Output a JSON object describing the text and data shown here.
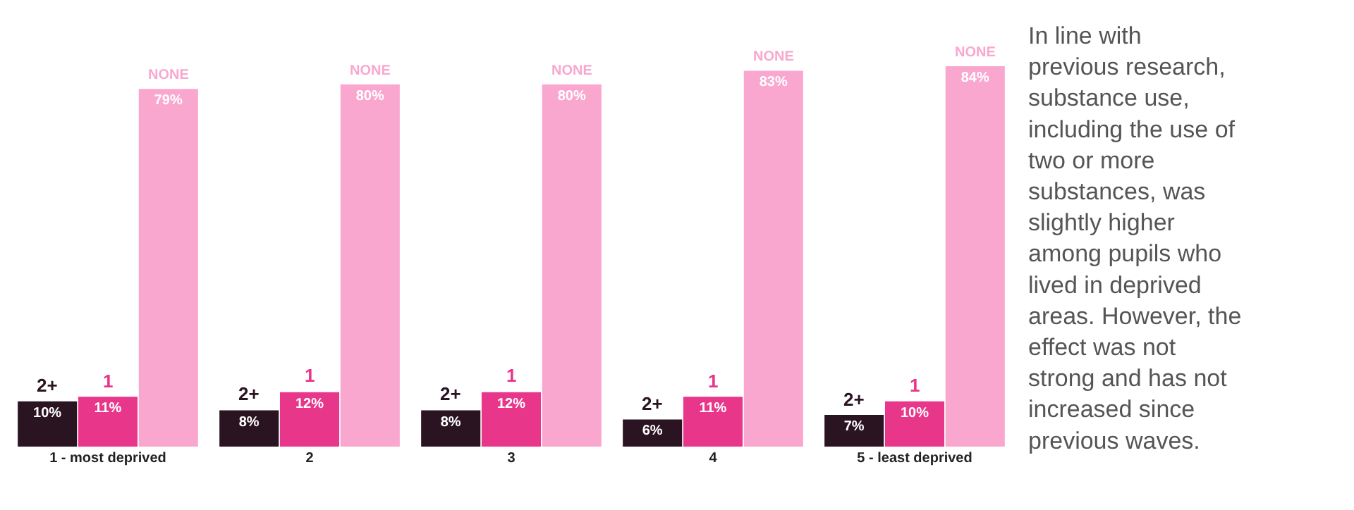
{
  "chart_data": {
    "type": "bar",
    "categories": [
      "1 - most deprived",
      "2",
      "3",
      "4",
      "5 - least deprived"
    ],
    "series": [
      {
        "name": "2+",
        "color": "#2b1421",
        "values": [
          10,
          8,
          8,
          6,
          7
        ],
        "value_labels": [
          "10%",
          "8%",
          "8%",
          "6%",
          "7%"
        ]
      },
      {
        "name": "1",
        "color": "#e8378b",
        "values": [
          11,
          12,
          12,
          11,
          10
        ],
        "value_labels": [
          "11%",
          "12%",
          "12%",
          "11%",
          "10%"
        ]
      },
      {
        "name": "NONE",
        "color": "#f9a7cf",
        "values": [
          79,
          80,
          80,
          83,
          84
        ],
        "value_labels": [
          "79%",
          "80%",
          "80%",
          "83%",
          "84%"
        ]
      }
    ],
    "annotations": [
      "In line with previous research, substance use, including the use of two or more substances, was slightly higher among pupils who lived in deprived areas. However, the effect was not strong and has not increased since previous waves."
    ]
  }
}
